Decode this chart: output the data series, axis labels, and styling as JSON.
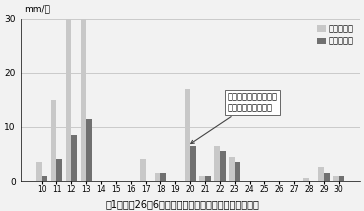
{
  "days": [
    10,
    11,
    12,
    13,
    14,
    15,
    16,
    17,
    18,
    19,
    20,
    21,
    22,
    23,
    24,
    25,
    26,
    27,
    28,
    29,
    30
  ],
  "total_rain": [
    3.5,
    15.0,
    30.0,
    30.0,
    0,
    0,
    0,
    4.0,
    1.5,
    0,
    17.0,
    1.0,
    6.5,
    4.5,
    0,
    0,
    0,
    0,
    0.5,
    2.5,
    1.0
  ],
  "max_hourly": [
    1.0,
    4.0,
    8.5,
    11.5,
    0,
    0,
    0,
    0,
    1.5,
    0,
    6.5,
    1.0,
    5.5,
    3.5,
    0,
    0,
    0,
    0,
    0,
    1.5,
    1.0
  ],
  "color_total": "#c8c8c8",
  "color_max": "#707070",
  "ylim": [
    0,
    30
  ],
  "yticks": [
    0,
    10,
    20,
    30
  ],
  "ylabel": "mm/日",
  "legend_total": "合計降雨量",
  "legend_max": "１時間最大",
  "annotation_text": "サイレージ調製作業が\n本格的に開始される",
  "title": "図1　平成26年6月における降水量（鶴居村アメダス）",
  "bg_color": "#f2f2f2",
  "grid_color": "#bbbbbb"
}
